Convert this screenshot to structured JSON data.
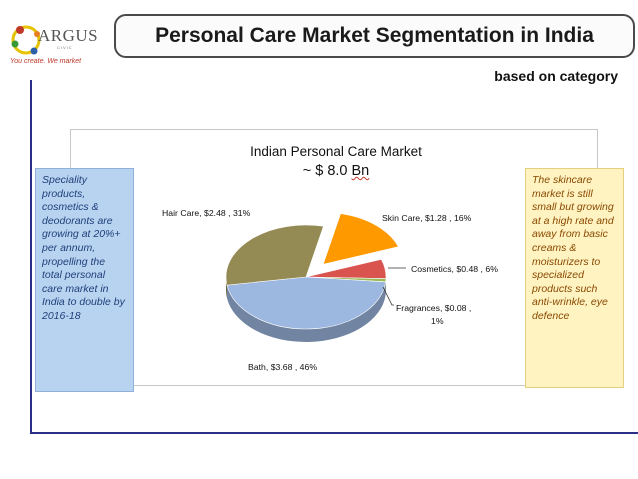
{
  "logo": {
    "name": "ARGUS",
    "subline": "CIVIC",
    "tagline": "You create. We market"
  },
  "header": {
    "title": "Personal Care Market Segmentation in India",
    "subtitle": "based on category"
  },
  "side_notes": {
    "left": "Speciality products, cosmetics & deodorants are growing at 20%+ per annum, propelling the total personal care market in India to double by 2016-18",
    "right": "The skincare market is still small but growing at a high rate and away from basic creams & moisturizers to specialized products such anti-wrinkle, eye defence"
  },
  "chart_data": {
    "type": "pie",
    "title": "Indian Personal Care Market",
    "subtitle_prefix": "~ $ 8.0 ",
    "subtitle_unit": "Bn",
    "slices": [
      {
        "label": "Skin Care",
        "value": 1.28,
        "percent": 16,
        "color": "#ff9900",
        "exploded": true,
        "data_label": "Skin Care,  $1.28 , 16%"
      },
      {
        "label": "Cosmetics",
        "value": 0.48,
        "percent": 6,
        "color": "#d9534f",
        "exploded": false,
        "data_label": "Cosmetics,  $0.48 , 6%"
      },
      {
        "label": "Fragrances",
        "value": 0.08,
        "percent": 1,
        "color": "#9bbb59",
        "exploded": false,
        "data_label_lines": [
          "Fragrances,  $0.08 ,",
          "1%"
        ]
      },
      {
        "label": "Bath",
        "value": 3.68,
        "percent": 46,
        "color": "#9db8e0",
        "exploded": false,
        "data_label": "Bath,  $3.68 , 46%"
      },
      {
        "label": "Hair Care",
        "value": 2.48,
        "percent": 31,
        "color": "#948a54",
        "exploded": false,
        "data_label": "Hair Care,  $2.48 , 31%"
      }
    ],
    "legend": "none",
    "style": "3d-pie"
  }
}
